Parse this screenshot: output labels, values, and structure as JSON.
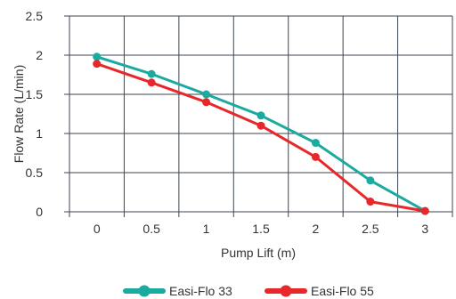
{
  "chart_data": {
    "type": "line",
    "title": "",
    "xlabel": "Pump Lift (m)",
    "ylabel": "Flow Rate (L/min)",
    "xlim": [
      -0.25,
      3.25
    ],
    "ylim": [
      0,
      2.5
    ],
    "x_ticks": [
      "0",
      "0.5",
      "1",
      "1.5",
      "2",
      "2.5",
      "3"
    ],
    "y_ticks": [
      "0",
      "0.5",
      "1",
      "1.5",
      "2",
      "2.5"
    ],
    "grid": true,
    "legend_position": "bottom",
    "series": [
      {
        "name": "Easi-Flo 33",
        "color": "#1aaaa0",
        "x": [
          0,
          0.5,
          1,
          1.5,
          2,
          2.5,
          3
        ],
        "y": [
          1.98,
          1.76,
          1.5,
          1.23,
          0.88,
          0.4,
          0.01
        ]
      },
      {
        "name": "Easi-Flo 55",
        "color": "#e8272b",
        "x": [
          0,
          0.5,
          1,
          1.5,
          2,
          2.5,
          3
        ],
        "y": [
          1.89,
          1.65,
          1.4,
          1.1,
          0.7,
          0.13,
          0.01
        ]
      }
    ]
  }
}
